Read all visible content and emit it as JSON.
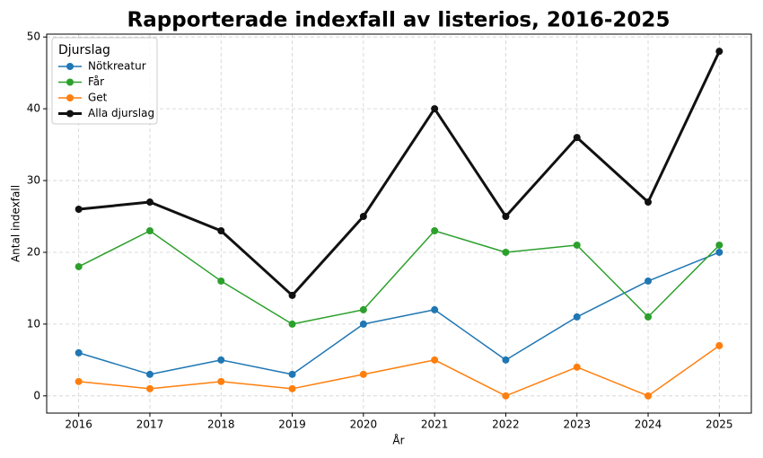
{
  "chart_data": {
    "type": "line",
    "title": "Rapporterade indexfall av listerios, 2016-2025",
    "xlabel": "År",
    "ylabel": "Antal indexfall",
    "x": [
      2016,
      2017,
      2018,
      2019,
      2020,
      2021,
      2022,
      2023,
      2024,
      2025
    ],
    "xlim": [
      2015.55,
      2025.45
    ],
    "xticks": [
      2016,
      2017,
      2018,
      2019,
      2020,
      2021,
      2022,
      2023,
      2024,
      2025
    ],
    "ylim": [
      -2.4,
      50.4
    ],
    "yticks": [
      0,
      10,
      20,
      30,
      40,
      50
    ],
    "grid": true,
    "legend_title": "Djurslag",
    "legend_position": "upper-left",
    "series": [
      {
        "name": "Nötkreatur",
        "color": "#1f77b4",
        "linewidth": 1.5,
        "values": [
          6,
          3,
          5,
          3,
          10,
          12,
          5,
          11,
          16,
          20
        ]
      },
      {
        "name": "Får",
        "color": "#2ca02c",
        "linewidth": 1.5,
        "values": [
          18,
          23,
          16,
          10,
          12,
          23,
          20,
          21,
          11,
          21
        ]
      },
      {
        "name": "Get",
        "color": "#ff7f0e",
        "linewidth": 1.5,
        "values": [
          2,
          1,
          2,
          1,
          3,
          5,
          0,
          4,
          0,
          7
        ]
      },
      {
        "name": "Alla djurslag",
        "color": "#111111",
        "linewidth": 3,
        "values": [
          26,
          27,
          23,
          14,
          25,
          40,
          25,
          36,
          27,
          48
        ]
      }
    ]
  }
}
